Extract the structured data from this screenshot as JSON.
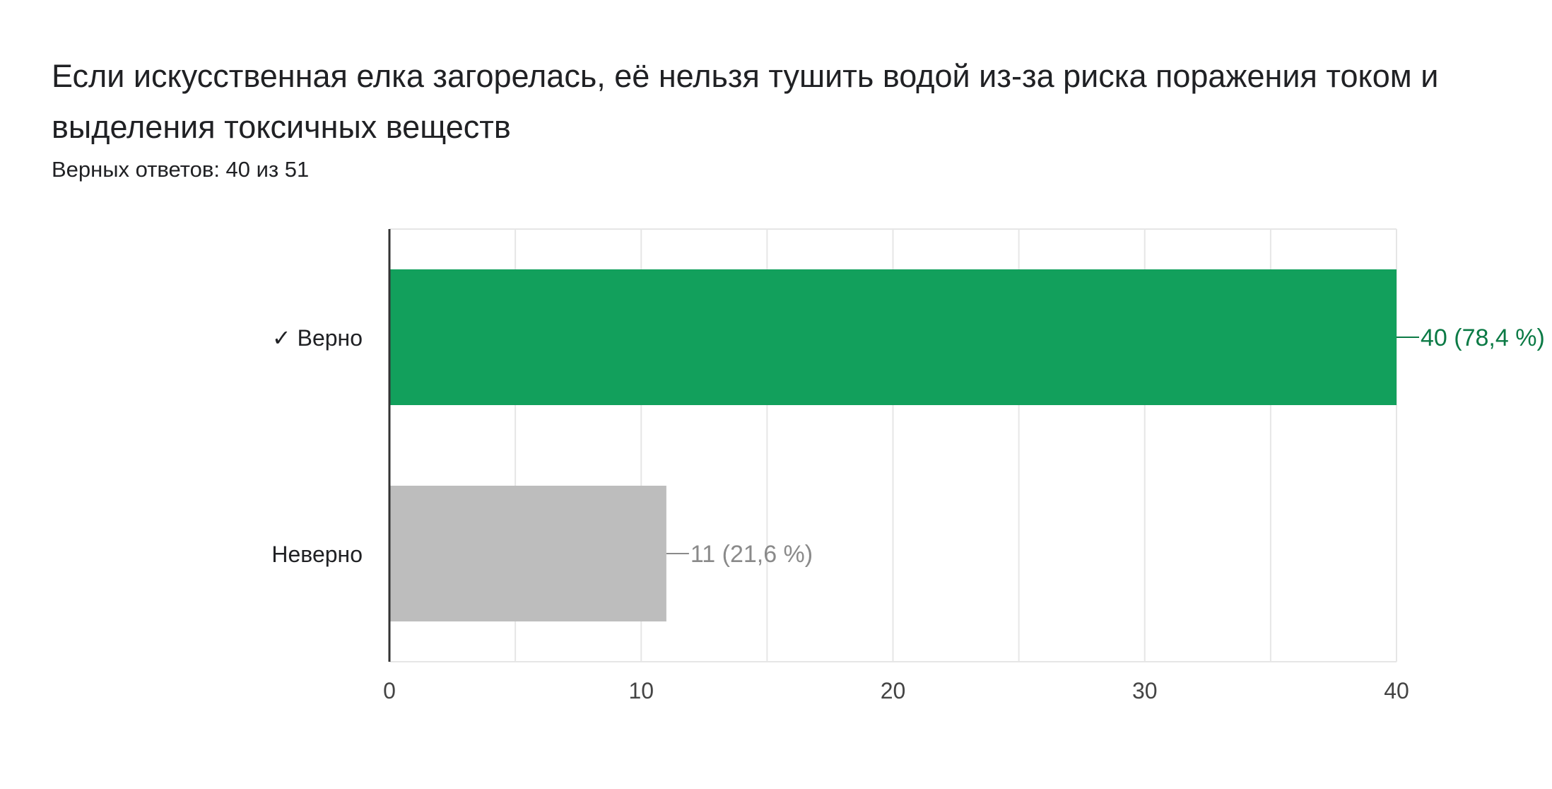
{
  "question": {
    "title": "Если искусственная елка загорелась, её нельзя тушить водой из-за риска поражения током и выделения токсичных веществ",
    "score": "Верных ответов: 40 из 51"
  },
  "colors": {
    "correct_bar": "#12A05C",
    "correct_label": "#0B7A45",
    "incorrect_bar": "#BDBDBD",
    "incorrect_label": "#8A8A8A",
    "grid": "#E6E6E6",
    "axis": "#333333"
  },
  "chart_data": {
    "type": "bar",
    "orientation": "horizontal",
    "categories": [
      "✓ Верно",
      "Неверно"
    ],
    "values": [
      40,
      11
    ],
    "data_labels": [
      "40 (78,4 %)",
      "11 (21,6 %)"
    ],
    "xlim": [
      0,
      40
    ],
    "x_ticks": [
      0,
      10,
      20,
      30,
      40
    ],
    "grid": true,
    "title": "",
    "xlabel": "",
    "ylabel": ""
  }
}
